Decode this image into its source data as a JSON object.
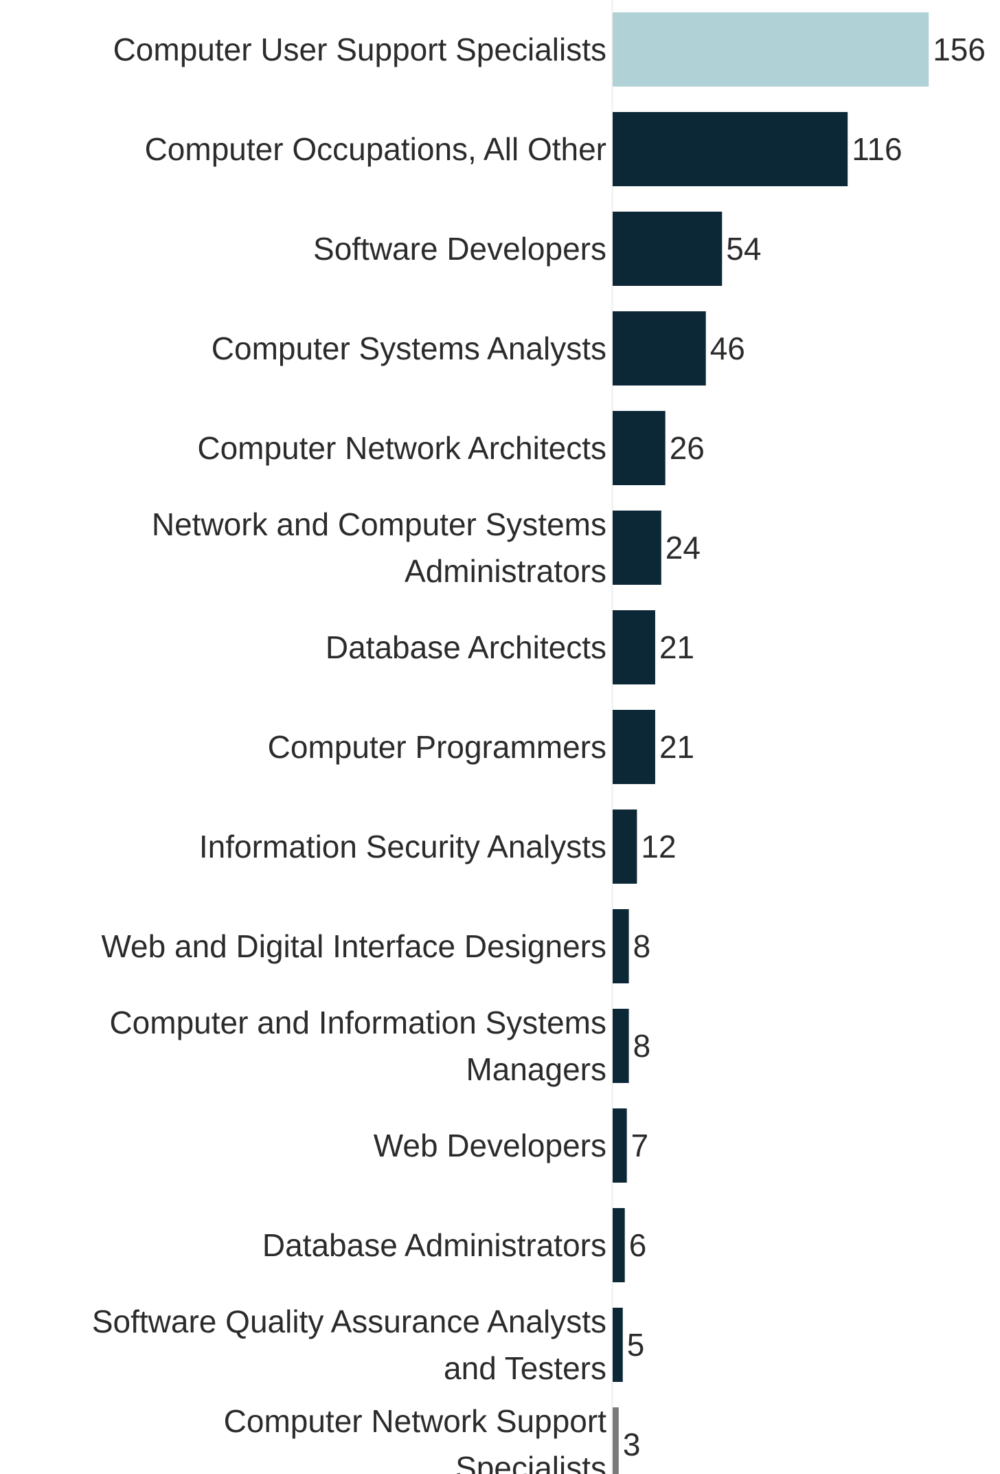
{
  "chart_data": {
    "type": "bar",
    "orientation": "horizontal",
    "title": "",
    "xlabel": "",
    "ylabel": "",
    "xlim": [
      0,
      165
    ],
    "grid": false,
    "legend": "none",
    "categories": [
      "Computer User Support Specialists",
      "Computer Occupations, All Other",
      "Software Developers",
      "Computer Systems Analysts",
      "Computer Network Architects",
      "Network and Computer Systems Administrators",
      "Database Architects",
      "Computer Programmers",
      "Information Security Analysts",
      "Web and Digital Interface Designers",
      "Computer and Information Systems Managers",
      "Web Developers",
      "Database Administrators",
      "Software Quality Assurance Analysts and Testers",
      "Computer Network Support Specialists"
    ],
    "category_lines": [
      [
        "Computer User Support Specialists"
      ],
      [
        "Computer Occupations, All Other"
      ],
      [
        "Software Developers"
      ],
      [
        "Computer Systems Analysts"
      ],
      [
        "Computer Network Architects"
      ],
      [
        "Network and Computer Systems",
        "Administrators"
      ],
      [
        "Database Architects"
      ],
      [
        "Computer Programmers"
      ],
      [
        "Information Security Analysts"
      ],
      [
        "Web and Digital Interface Designers"
      ],
      [
        "Computer and Information Systems",
        "Managers"
      ],
      [
        "Web Developers"
      ],
      [
        "Database Administrators"
      ],
      [
        "Software Quality Assurance Analysts",
        "and Testers"
      ],
      [
        "Computer Network Support",
        "Specialists"
      ]
    ],
    "values": [
      156,
      116,
      54,
      46,
      26,
      24,
      21,
      21,
      12,
      8,
      8,
      7,
      6,
      5,
      3
    ],
    "value_labels": [
      "156",
      "116",
      "54",
      "46",
      "26",
      "24",
      "21",
      "21",
      "12",
      "8",
      "8",
      "7",
      "6",
      "5",
      "3"
    ],
    "bar_colors": [
      "#b0d1d6",
      "#0c2837",
      "#0c2837",
      "#0c2837",
      "#0c2837",
      "#0c2837",
      "#0c2837",
      "#0c2837",
      "#0c2837",
      "#0c2837",
      "#0c2837",
      "#0c2837",
      "#0c2837",
      "#0c2837",
      "#7a7a7a"
    ]
  }
}
